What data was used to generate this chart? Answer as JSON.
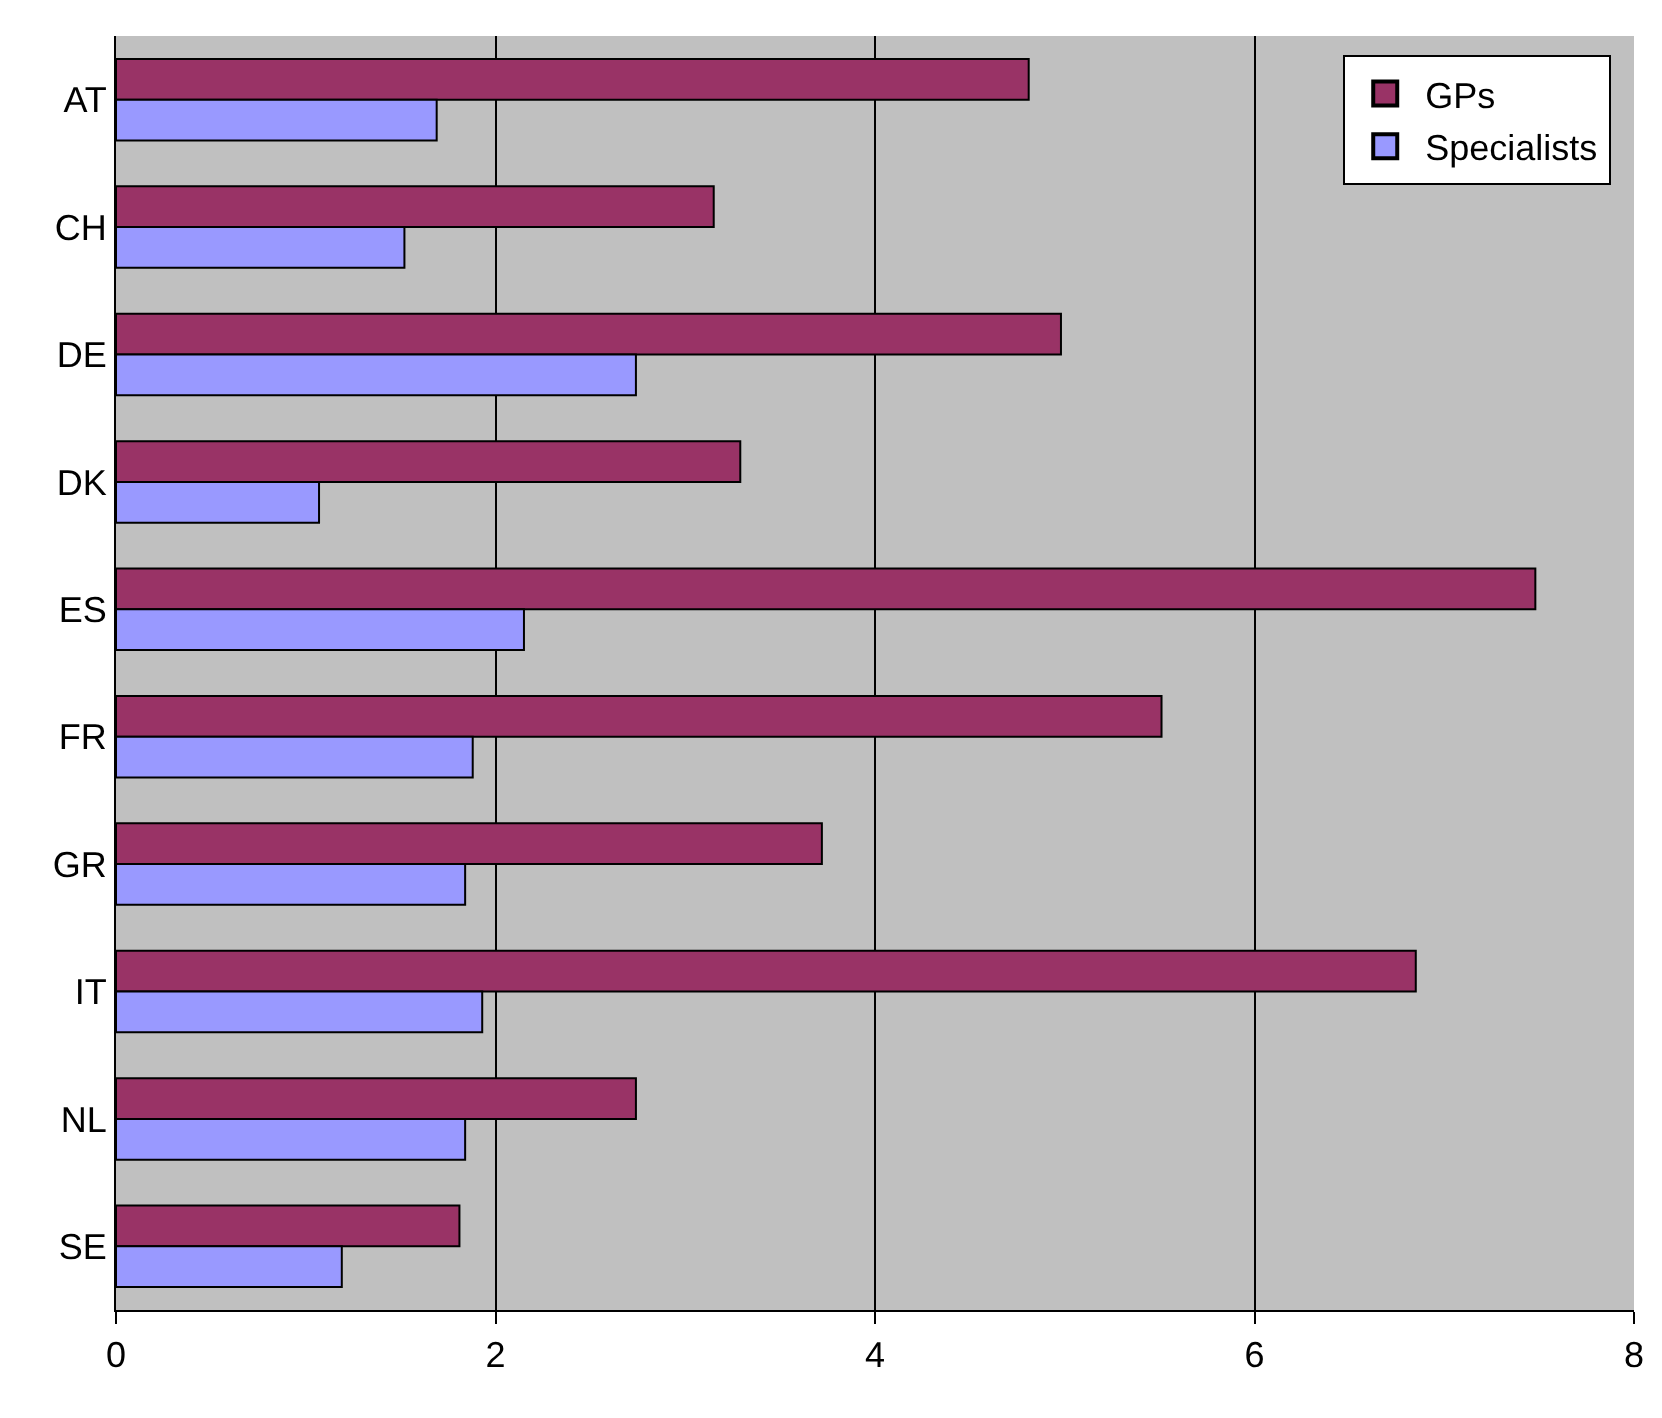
{
  "chart_data": {
    "type": "bar",
    "orientation": "horizontal",
    "categories": [
      "AT",
      "CH",
      "DE",
      "DK",
      "ES",
      "FR",
      "GR",
      "IT",
      "NL",
      "SE"
    ],
    "series": [
      {
        "name": "GPs",
        "color": "#993366",
        "values": [
          4.81,
          3.15,
          4.98,
          3.29,
          7.48,
          5.51,
          3.72,
          6.85,
          2.74,
          1.81
        ]
      },
      {
        "name": "Specialists",
        "color": "#9999ff",
        "values": [
          1.69,
          1.52,
          2.74,
          1.07,
          2.15,
          1.88,
          1.84,
          1.93,
          1.84,
          1.19
        ]
      }
    ],
    "xlim": [
      0,
      8
    ],
    "xticks": [
      0,
      2,
      4,
      6,
      8
    ],
    "grid": "x",
    "legend": "top right"
  }
}
